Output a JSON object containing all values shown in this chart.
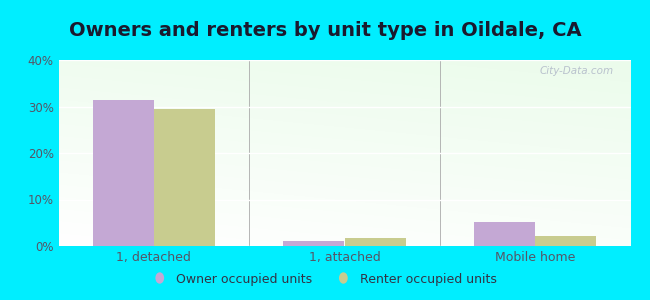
{
  "title": "Owners and renters by unit type in Oildale, CA",
  "categories": [
    "1, detached",
    "1, attached",
    "Mobile home"
  ],
  "owner_values": [
    31.5,
    1.0,
    5.2
  ],
  "renter_values": [
    29.5,
    1.8,
    2.2
  ],
  "owner_color": "#c4a8d4",
  "renter_color": "#c8cc8f",
  "ylim": [
    0,
    40
  ],
  "yticks": [
    0,
    10,
    20,
    30,
    40
  ],
  "yticklabels": [
    "0%",
    "10%",
    "20%",
    "30%",
    "40%"
  ],
  "outer_background": "#00eeff",
  "legend_owner": "Owner occupied units",
  "legend_renter": "Renter occupied units",
  "title_fontsize": 14,
  "bar_width": 0.32,
  "watermark": "City-Data.com"
}
